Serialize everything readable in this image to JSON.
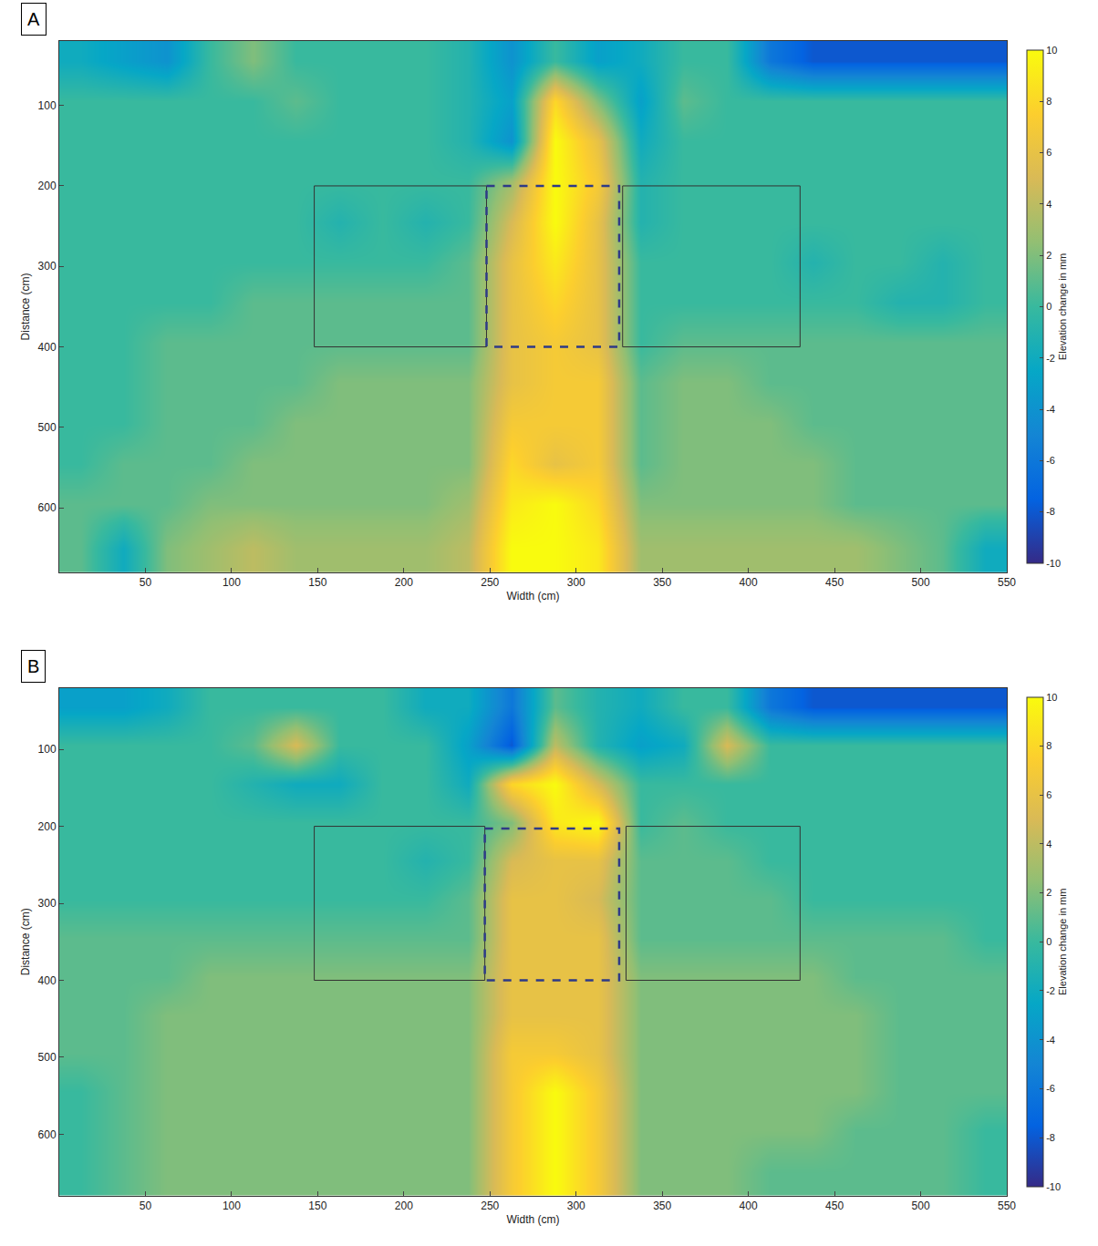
{
  "chart_data": [
    {
      "type": "heatmap",
      "title": "A",
      "x_label": "Width (cm)",
      "y_label": "Distance (cm)",
      "colorbar_title": "Elevation change in mm",
      "x": [
        0,
        25,
        50,
        75,
        100,
        125,
        150,
        175,
        200,
        225,
        250,
        275,
        300,
        325,
        350,
        375,
        400,
        425,
        450,
        475,
        500,
        525,
        550
      ],
      "y": [
        20,
        70,
        120,
        170,
        220,
        270,
        320,
        370,
        420,
        470,
        520,
        570,
        620,
        680
      ],
      "z": [
        [
          -2,
          -3,
          -4,
          0,
          2,
          0,
          0,
          0,
          0,
          -1,
          -4,
          0,
          -3,
          -2,
          0,
          0,
          -6,
          -8,
          -8,
          -8,
          -8,
          -8
        ],
        [
          0,
          0,
          0,
          0,
          0,
          1,
          0,
          0,
          0,
          -1,
          -3,
          8,
          2,
          -3,
          1,
          0,
          0,
          0,
          0,
          0,
          0,
          0
        ],
        [
          0,
          0,
          0,
          0,
          0,
          0,
          0,
          0,
          0,
          -1,
          -4,
          10,
          6,
          -2,
          0,
          0,
          0,
          0,
          0,
          0,
          0,
          0
        ],
        [
          0,
          0,
          0,
          0,
          0,
          0,
          0,
          0,
          0,
          0,
          3,
          10,
          7,
          -1,
          0,
          0,
          0,
          0,
          0,
          0,
          0,
          0
        ],
        [
          0,
          0,
          0,
          0,
          0,
          0,
          -1,
          0,
          -1,
          0,
          5,
          10,
          6,
          -1,
          0,
          0,
          0,
          0,
          0,
          0,
          0,
          0
        ],
        [
          0,
          0,
          0,
          0,
          0,
          0,
          0,
          0,
          0,
          1,
          6,
          9,
          6,
          0,
          0,
          0,
          0,
          -1,
          0,
          0,
          -1,
          0
        ],
        [
          0,
          0,
          0,
          0,
          1,
          1,
          1,
          1,
          1,
          1,
          6,
          8,
          6,
          0,
          0,
          0,
          0,
          0,
          0,
          -1,
          -1,
          0
        ],
        [
          0,
          0,
          1,
          1,
          1,
          1,
          1,
          1,
          1,
          1,
          6,
          7,
          6,
          0,
          1,
          1,
          1,
          1,
          1,
          1,
          1,
          1
        ],
        [
          0,
          0,
          1,
          1,
          1,
          1,
          2,
          2,
          2,
          2,
          6,
          7,
          7,
          1,
          2,
          2,
          1,
          1,
          1,
          1,
          1,
          1
        ],
        [
          0,
          0,
          1,
          1,
          1,
          2,
          2,
          2,
          2,
          2,
          7,
          7,
          7,
          1,
          2,
          2,
          2,
          1,
          1,
          1,
          1,
          1
        ],
        [
          0,
          1,
          1,
          1,
          2,
          2,
          2,
          2,
          2,
          2,
          8,
          6,
          7,
          1,
          2,
          2,
          2,
          2,
          1,
          1,
          1,
          1
        ],
        [
          1,
          1,
          1,
          2,
          2,
          2,
          2,
          2,
          2,
          3,
          9,
          10,
          8,
          2,
          2,
          2,
          2,
          2,
          1,
          1,
          1,
          1
        ],
        [
          1,
          -2,
          2,
          3,
          4,
          3,
          3,
          3,
          3,
          4,
          10,
          10,
          9,
          3,
          3,
          3,
          3,
          3,
          3,
          2,
          1,
          -2
        ]
      ],
      "xlim": [
        0,
        550
      ],
      "xticks": [
        50,
        100,
        150,
        200,
        250,
        300,
        350,
        400,
        450,
        500,
        550
      ],
      "ylim": [
        680,
        20
      ],
      "yticks": [
        100,
        200,
        300,
        400,
        500,
        600
      ],
      "zlim": [
        -10,
        10
      ],
      "zticks": [
        -10,
        -8,
        -6,
        -4,
        -2,
        0,
        2,
        4,
        6,
        8,
        10
      ],
      "boxes": [
        {
          "x": [
            148,
            248
          ],
          "y": [
            200,
            400
          ],
          "line_style": "solid"
        },
        {
          "x": [
            248,
            325
          ],
          "y": [
            200,
            400
          ],
          "line_style": "dashed"
        },
        {
          "x": [
            327,
            430
          ],
          "y": [
            200,
            400
          ],
          "line_style": "solid"
        }
      ],
      "grid": false
    },
    {
      "type": "heatmap",
      "title": "B",
      "x_label": "Width (cm)",
      "y_label": "Distance (cm)",
      "colorbar_title": "Elevation change in mm",
      "x": [
        0,
        25,
        50,
        75,
        100,
        125,
        150,
        175,
        200,
        225,
        250,
        275,
        300,
        325,
        350,
        375,
        400,
        425,
        450,
        475,
        500,
        525,
        550
      ],
      "y": [
        20,
        70,
        120,
        170,
        220,
        270,
        320,
        370,
        420,
        470,
        520,
        570,
        620,
        680
      ],
      "z": [
        [
          -3,
          -3,
          -2,
          0,
          0,
          0,
          0,
          0,
          -2,
          -2,
          -6,
          1,
          -1,
          -2,
          0,
          0,
          -6,
          -8,
          -8,
          -8,
          -8,
          -8
        ],
        [
          0,
          0,
          0,
          0,
          1,
          5,
          0,
          0,
          0,
          -3,
          -8,
          4,
          -1,
          -3,
          -2,
          5,
          0,
          0,
          0,
          0,
          0,
          0
        ],
        [
          0,
          0,
          0,
          0,
          -1,
          -2,
          -2,
          0,
          0,
          -2,
          8,
          10,
          5,
          0,
          0,
          0,
          0,
          0,
          0,
          0,
          0,
          0
        ],
        [
          0,
          0,
          0,
          0,
          0,
          0,
          0,
          0,
          0,
          0,
          2,
          9,
          10,
          0,
          1,
          0,
          0,
          0,
          0,
          0,
          0,
          0
        ],
        [
          0,
          0,
          0,
          0,
          0,
          0,
          0,
          0,
          -1,
          0,
          5,
          6,
          6,
          1,
          1,
          1,
          0,
          0,
          0,
          0,
          0,
          0
        ],
        [
          0,
          0,
          0,
          0,
          0,
          0,
          0,
          0,
          0,
          1,
          6,
          6,
          5,
          1,
          1,
          1,
          1,
          0,
          0,
          0,
          0,
          0
        ],
        [
          1,
          1,
          1,
          1,
          1,
          1,
          1,
          1,
          1,
          1,
          6,
          6,
          6,
          1,
          1,
          1,
          1,
          1,
          1,
          1,
          1,
          0
        ],
        [
          1,
          1,
          1,
          2,
          2,
          2,
          2,
          2,
          2,
          2,
          6,
          6,
          6,
          2,
          2,
          2,
          2,
          2,
          1,
          1,
          1,
          1
        ],
        [
          1,
          1,
          2,
          2,
          2,
          2,
          2,
          2,
          2,
          2,
          6,
          6,
          6,
          2,
          2,
          2,
          2,
          2,
          2,
          1,
          1,
          1
        ],
        [
          1,
          1,
          2,
          2,
          2,
          2,
          2,
          2,
          2,
          2,
          7,
          7,
          6,
          2,
          2,
          2,
          2,
          2,
          2,
          1,
          1,
          1
        ],
        [
          0,
          1,
          2,
          2,
          2,
          2,
          2,
          2,
          2,
          2,
          7,
          10,
          7,
          2,
          2,
          2,
          2,
          2,
          2,
          1,
          1,
          1
        ],
        [
          0,
          1,
          2,
          2,
          2,
          2,
          2,
          2,
          2,
          2,
          7,
          10,
          7,
          2,
          2,
          2,
          2,
          2,
          1,
          1,
          1,
          0
        ],
        [
          0,
          1,
          2,
          2,
          2,
          2,
          2,
          2,
          2,
          2,
          7,
          10,
          7,
          2,
          2,
          2,
          1,
          1,
          1,
          1,
          1,
          0
        ]
      ],
      "xlim": [
        0,
        550
      ],
      "xticks": [
        50,
        100,
        150,
        200,
        250,
        300,
        350,
        400,
        450,
        500,
        550
      ],
      "ylim": [
        680,
        20
      ],
      "yticks": [
        100,
        200,
        300,
        400,
        500,
        600
      ],
      "zlim": [
        -10,
        10
      ],
      "zticks": [
        -10,
        -8,
        -6,
        -4,
        -2,
        0,
        2,
        4,
        6,
        8,
        10
      ],
      "boxes": [
        {
          "x": [
            148,
            247
          ],
          "y": [
            200,
            400
          ],
          "line_style": "solid"
        },
        {
          "x": [
            247,
            325
          ],
          "y": [
            203,
            400
          ],
          "line_style": "dashed"
        },
        {
          "x": [
            329,
            430
          ],
          "y": [
            200,
            400
          ],
          "line_style": "solid"
        }
      ],
      "grid": false
    }
  ]
}
